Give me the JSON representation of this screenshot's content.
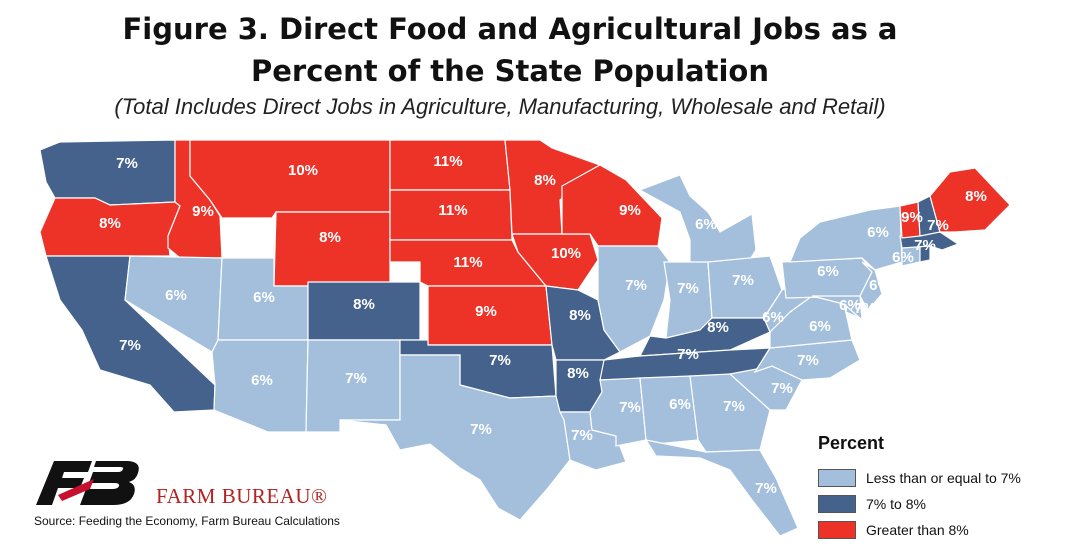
{
  "title_line1": "Figure 3. Direct Food and Agricultural Jobs as a",
  "title_line2": "Percent of the State Population",
  "subtitle": "(Total Includes Direct Jobs in Agriculture, Manufacturing, Wholesale and Retail)",
  "legend": {
    "title": "Percent",
    "items": [
      {
        "label": "Less than or equal to 7%",
        "color": "#a3bfdc"
      },
      {
        "label": "7% to 8%",
        "color": "#44628b"
      },
      {
        "label": "Greater than 8%",
        "color": "#ed3227"
      }
    ]
  },
  "colors": {
    "light": "#a3bfdc",
    "dark": "#44628b",
    "red": "#ed3227",
    "border": "#ffffff",
    "label": "#ffffff"
  },
  "brand": "FARM BUREAU®",
  "source": "Source: Feeding the Economy, Farm Bureau Calculations",
  "map_data": {
    "states": [
      {
        "state": "WA",
        "value": "7%",
        "category": "dark"
      },
      {
        "state": "OR",
        "value": "8%",
        "category": "red"
      },
      {
        "state": "CA",
        "value": "7%",
        "category": "dark"
      },
      {
        "state": "ID",
        "value": "9%",
        "category": "red"
      },
      {
        "state": "NV",
        "value": "6%",
        "category": "light"
      },
      {
        "state": "MT",
        "value": "10%",
        "category": "red"
      },
      {
        "state": "WY",
        "value": "8%",
        "category": "red"
      },
      {
        "state": "UT",
        "value": "6%",
        "category": "light"
      },
      {
        "state": "AZ",
        "value": "6%",
        "category": "light"
      },
      {
        "state": "CO",
        "value": "8%",
        "category": "dark"
      },
      {
        "state": "NM",
        "value": "7%",
        "category": "light"
      },
      {
        "state": "ND",
        "value": "11%",
        "category": "red"
      },
      {
        "state": "SD",
        "value": "11%",
        "category": "red"
      },
      {
        "state": "NE",
        "value": "11%",
        "category": "red"
      },
      {
        "state": "KS",
        "value": "9%",
        "category": "red"
      },
      {
        "state": "OK",
        "value": "7%",
        "category": "dark"
      },
      {
        "state": "TX",
        "value": "7%",
        "category": "light"
      },
      {
        "state": "MN",
        "value": "8%",
        "category": "red"
      },
      {
        "state": "IA",
        "value": "10%",
        "category": "red"
      },
      {
        "state": "MO",
        "value": "8%",
        "category": "dark"
      },
      {
        "state": "AR",
        "value": "8%",
        "category": "dark"
      },
      {
        "state": "LA",
        "value": "7%",
        "category": "light"
      },
      {
        "state": "WI",
        "value": "9%",
        "category": "red"
      },
      {
        "state": "IL",
        "value": "7%",
        "category": "light"
      },
      {
        "state": "MI",
        "value": "6%",
        "category": "light"
      },
      {
        "state": "IN",
        "value": "7%",
        "category": "light"
      },
      {
        "state": "OH",
        "value": "7%",
        "category": "light"
      },
      {
        "state": "KY",
        "value": "8%",
        "category": "dark"
      },
      {
        "state": "TN",
        "value": "7%",
        "category": "dark"
      },
      {
        "state": "MS",
        "value": "7%",
        "category": "light"
      },
      {
        "state": "AL",
        "value": "6%",
        "category": "light"
      },
      {
        "state": "GA",
        "value": "7%",
        "category": "light"
      },
      {
        "state": "FL",
        "value": "7%",
        "category": "light"
      },
      {
        "state": "SC",
        "value": "7%",
        "category": "light"
      },
      {
        "state": "NC",
        "value": "7%",
        "category": "light"
      },
      {
        "state": "VA",
        "value": "6%",
        "category": "light"
      },
      {
        "state": "WV",
        "value": "6%",
        "category": "light"
      },
      {
        "state": "PA",
        "value": "6%",
        "category": "light"
      },
      {
        "state": "NY",
        "value": "6%",
        "category": "light"
      },
      {
        "state": "NJ",
        "value": "6%",
        "category": "light"
      },
      {
        "state": "DE",
        "value": "6%",
        "category": "light"
      },
      {
        "state": "MD",
        "value": "7%",
        "category": "light"
      },
      {
        "state": "CT",
        "value": "6%",
        "category": "light"
      },
      {
        "state": "RI",
        "value": "",
        "category": "dark"
      },
      {
        "state": "MA",
        "value": "7%",
        "category": "dark"
      },
      {
        "state": "VT",
        "value": "9%",
        "category": "red"
      },
      {
        "state": "NH",
        "value": "7%",
        "category": "dark"
      },
      {
        "state": "ME",
        "value": "8%",
        "category": "red"
      }
    ]
  }
}
